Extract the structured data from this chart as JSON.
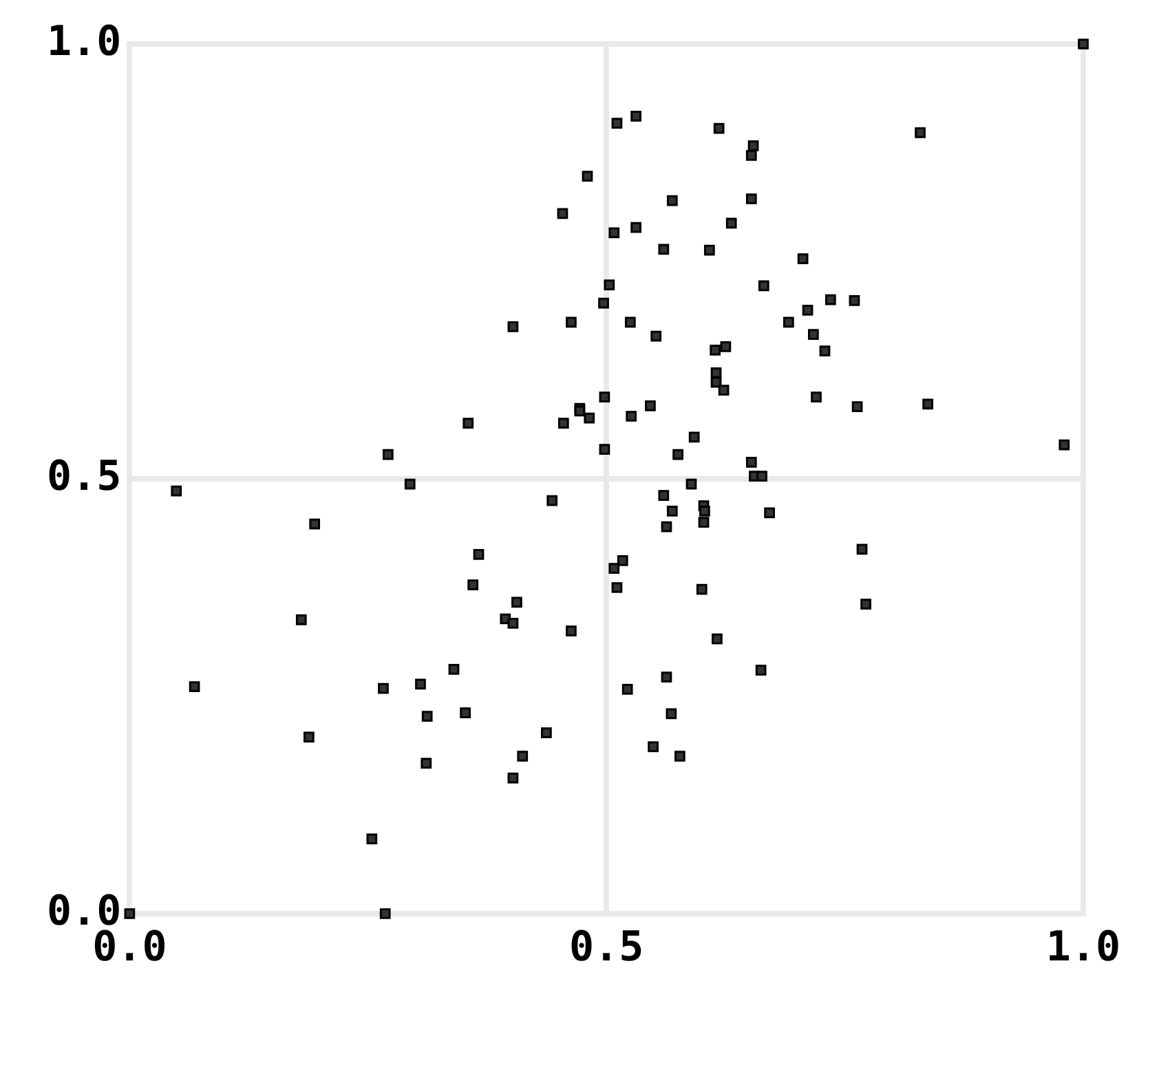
{
  "chart_data": {
    "type": "scatter",
    "marker": "square",
    "grid": true,
    "xlim": [
      0,
      1
    ],
    "ylim": [
      0,
      1
    ],
    "xticks": [
      {
        "value": 0,
        "label": "0.0"
      },
      {
        "value": 0.5,
        "label": "0.5"
      },
      {
        "value": 1,
        "label": "1.0"
      }
    ],
    "yticks": [
      {
        "value": 0,
        "label": "0.0"
      },
      {
        "value": 0.5,
        "label": "0.5"
      },
      {
        "value": 1,
        "label": "1.0"
      }
    ],
    "series": [
      {
        "color": "#333333",
        "x": [
          1.0,
          0,
          0.268,
          0.254,
          0.049,
          0.068,
          0.194,
          0.18,
          0.188,
          0.271,
          0.294,
          0.266,
          0.305,
          0.312,
          0.311,
          0.34,
          0.352,
          0.355,
          0.366,
          0.36,
          0.394,
          0.402,
          0.406,
          0.402,
          0.412,
          0.437,
          0.402,
          0.443,
          0.454,
          0.463,
          0.463,
          0.48,
          0.455,
          0.472,
          0.472,
          0.482,
          0.497,
          0.503,
          0.508,
          0.511,
          0.531,
          0.531,
          0.498,
          0.498,
          0.508,
          0.517,
          0.511,
          0.522,
          0.525,
          0.526,
          0.546,
          0.552,
          0.56,
          0.569,
          0.575,
          0.592,
          0.589,
          0.56,
          0.569,
          0.563,
          0.602,
          0.603,
          0.602,
          0.6,
          0.563,
          0.568,
          0.549,
          0.577,
          0.616,
          0.608,
          0.618,
          0.631,
          0.614,
          0.625,
          0.615,
          0.615,
          0.623,
          0.652,
          0.654,
          0.652,
          0.665,
          0.652,
          0.655,
          0.663,
          0.671,
          0.662,
          0.691,
          0.706,
          0.711,
          0.717,
          0.729,
          0.735,
          0.76,
          0.72,
          0.763,
          0.768,
          0.772,
          0.829,
          0.837,
          0.98
        ],
        "values": [
          1.0,
          0,
          0,
          0.086,
          0.486,
          0.261,
          0.448,
          0.338,
          0.203,
          0.528,
          0.494,
          0.259,
          0.264,
          0.227,
          0.173,
          0.281,
          0.231,
          0.564,
          0.413,
          0.378,
          0.339,
          0.334,
          0.358,
          0.156,
          0.181,
          0.208,
          0.675,
          0.475,
          0.805,
          0.325,
          0.68,
          0.848,
          0.564,
          0.581,
          0.578,
          0.57,
          0.702,
          0.723,
          0.783,
          0.909,
          0.917,
          0.789,
          0.594,
          0.534,
          0.397,
          0.406,
          0.375,
          0.258,
          0.68,
          0.572,
          0.584,
          0.664,
          0.764,
          0.82,
          0.528,
          0.548,
          0.494,
          0.481,
          0.463,
          0.445,
          0.469,
          0.463,
          0.45,
          0.373,
          0.272,
          0.23,
          0.192,
          0.181,
          0.316,
          0.763,
          0.903,
          0.794,
          0.648,
          0.652,
          0.622,
          0.611,
          0.602,
          0.872,
          0.883,
          0.822,
          0.722,
          0.519,
          0.503,
          0.503,
          0.461,
          0.28,
          0.68,
          0.753,
          0.694,
          0.666,
          0.647,
          0.706,
          0.705,
          0.594,
          0.583,
          0.419,
          0.356,
          0.898,
          0.586,
          0.539
        ]
      }
    ]
  }
}
